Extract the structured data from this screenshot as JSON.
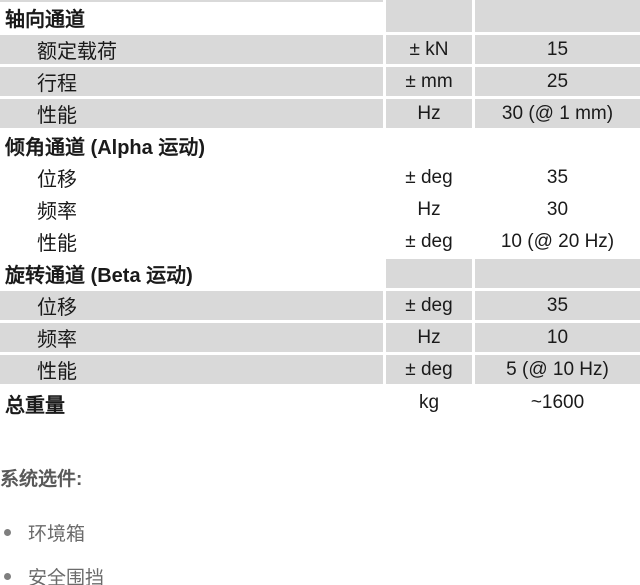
{
  "colors": {
    "row_shade": "#d9d9d9",
    "table_text": "#1a1a1a",
    "options_heading": "#595959",
    "options_text": "#6b6b6b",
    "bullet": "#7f7f7f"
  },
  "table": {
    "rows": [
      {
        "kind": "section",
        "label": "轴向通道",
        "unit": "",
        "value": "",
        "shaded": true
      },
      {
        "kind": "item",
        "label": "额定载荷",
        "unit": "± kN",
        "value": "15",
        "shaded": true
      },
      {
        "kind": "item",
        "label": "行程",
        "unit": "± mm",
        "value": "25",
        "shaded": true
      },
      {
        "kind": "item",
        "label": "性能",
        "unit": "Hz",
        "value": "30 (@ 1 mm)",
        "shaded": true
      },
      {
        "kind": "section",
        "label": "倾角通道 (Alpha 运动)",
        "unit": "",
        "value": "",
        "shaded": false
      },
      {
        "kind": "item",
        "label": "位移",
        "unit": "± deg",
        "value": "35",
        "shaded": false
      },
      {
        "kind": "item",
        "label": "频率",
        "unit": "Hz",
        "value": "30",
        "shaded": false
      },
      {
        "kind": "item",
        "label": "性能",
        "unit": "± deg",
        "value": "10 (@ 20 Hz)",
        "shaded": false
      },
      {
        "kind": "section",
        "label": "旋转通道 (Beta 运动)",
        "unit": "",
        "value": "",
        "shaded": true
      },
      {
        "kind": "item",
        "label": "位移",
        "unit": "± deg",
        "value": "35",
        "shaded": true
      },
      {
        "kind": "item",
        "label": "频率",
        "unit": "Hz",
        "value": "10",
        "shaded": true
      },
      {
        "kind": "item",
        "label": "性能",
        "unit": "± deg",
        "value": "5 (@ 10 Hz)",
        "shaded": true
      },
      {
        "kind": "total",
        "label": "总重量",
        "unit": "kg",
        "value": "~1600",
        "shaded": false
      }
    ]
  },
  "options": {
    "heading": "系统选件:",
    "items": [
      "环境箱",
      "安全围挡"
    ]
  }
}
